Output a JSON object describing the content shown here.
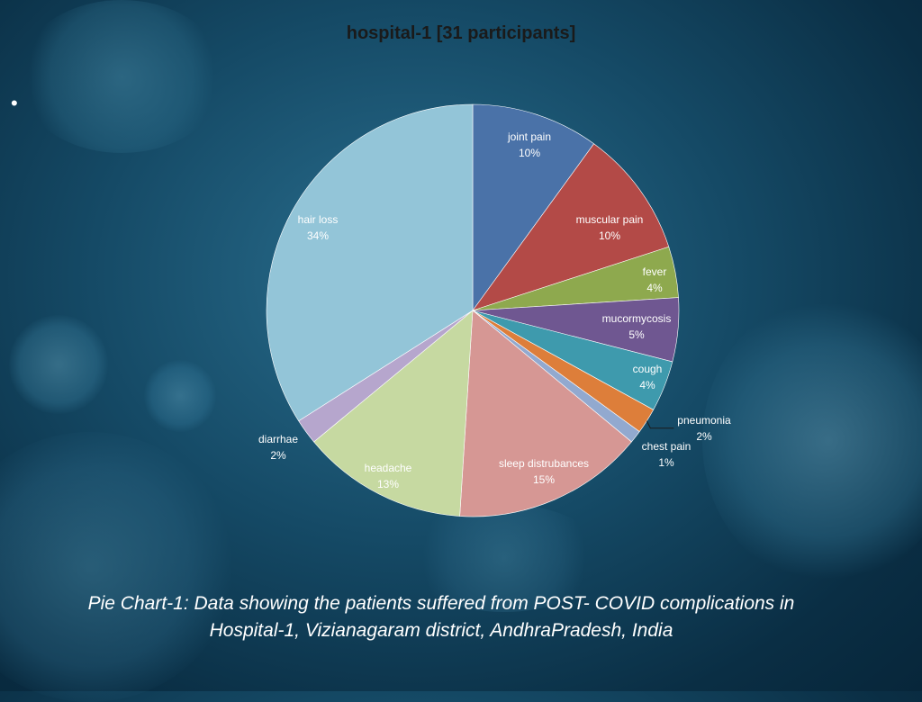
{
  "chart_data": {
    "type": "pie",
    "title": "hospital-1 [31 participants]",
    "slices": [
      {
        "label": "joint pain",
        "value": 10,
        "value_label": "10%",
        "color": "#4a72a8"
      },
      {
        "label": "muscular pain",
        "value": 10,
        "value_label": "10%",
        "color": "#b34a47"
      },
      {
        "label": "fever",
        "value": 4,
        "value_label": "4%",
        "color": "#8ea94e"
      },
      {
        "label": "mucormycosis",
        "value": 5,
        "value_label": "5%",
        "color": "#6f5791"
      },
      {
        "label": "cough",
        "value": 4,
        "value_label": "4%",
        "color": "#3e9aad"
      },
      {
        "label": "pneumonia",
        "value": 2,
        "value_label": "2%",
        "color": "#dd7e3a"
      },
      {
        "label": "chest pain",
        "value": 1,
        "value_label": "1%",
        "color": "#92a9cf"
      },
      {
        "label": "sleep distrubances",
        "value": 15,
        "value_label": "15%",
        "color": "#d69794"
      },
      {
        "label": "headache",
        "value": 13,
        "value_label": "13%",
        "color": "#c6d9a1"
      },
      {
        "label": "diarrhae",
        "value": 2,
        "value_label": "2%",
        "color": "#b6a6cd"
      },
      {
        "label": "hair loss",
        "value": 34,
        "value_label": "34%",
        "color": "#93c5d8"
      }
    ]
  },
  "caption": {
    "line1": "Pie Chart-1: Data showing the patients suffered from POST- COVID complications in",
    "line2": "Hospital-1, Vizianagaram district, AndhraPradesh, India"
  },
  "bullet": "•"
}
